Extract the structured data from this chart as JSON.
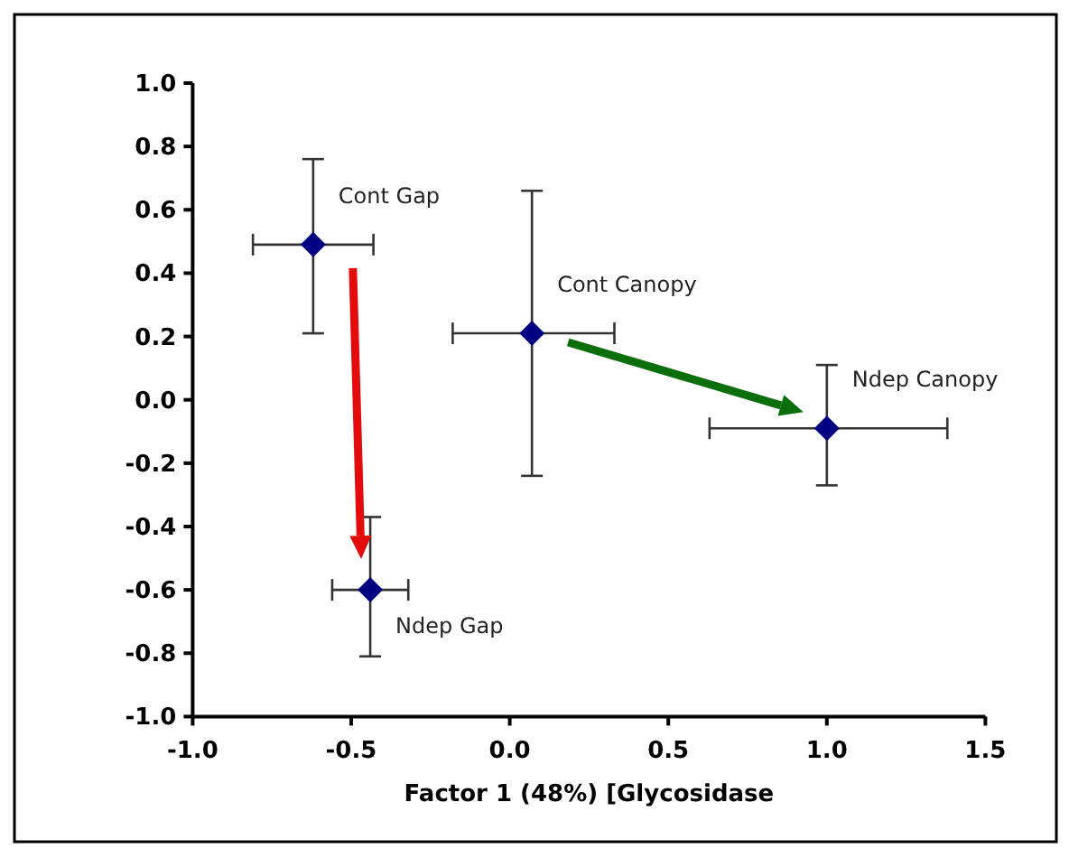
{
  "chart_data": {
    "type": "scatter",
    "xlabel": "Factor 1 (48%) [Glycosidase",
    "x": [
      -0.62,
      0.07,
      1.0,
      -0.44
    ],
    "series": [
      {
        "color": "#000080",
        "values": [
          0.49,
          0.21,
          -0.09,
          -0.6
        ],
        "errors": [
          [
            0.21,
            0.76
          ],
          [
            -0.24,
            0.66
          ],
          [
            -0.27,
            0.11
          ],
          [
            -0.81,
            -0.37
          ]
        ],
        "xerrors": [
          [
            -0.81,
            -0.43
          ],
          [
            -0.18,
            0.33
          ],
          [
            0.63,
            1.38
          ],
          [
            -0.56,
            -0.32
          ]
        ]
      }
    ],
    "marker": "diamond",
    "xlim": [
      -1.0,
      1.5
    ],
    "xticks": [
      {
        "value": -1.0,
        "label": "-1.0"
      },
      {
        "value": -0.5,
        "label": "-0.5"
      },
      {
        "value": 0,
        "label": "0.0"
      },
      {
        "value": 0.5,
        "label": "0.5"
      },
      {
        "value": 1.0,
        "label": "1.0"
      },
      {
        "value": 1.5,
        "label": "1.5"
      }
    ],
    "ylim": [
      -1.0,
      1.0
    ],
    "yticks": [
      {
        "value": -1.0,
        "label": "-1.0"
      },
      {
        "value": -0.8,
        "label": "-0.8"
      },
      {
        "value": -0.6,
        "label": "-0.6"
      },
      {
        "value": -0.4,
        "label": "-0.4"
      },
      {
        "value": -0.2,
        "label": "-0.2"
      },
      {
        "value": 0,
        "label": "0.0"
      },
      {
        "value": 0.2,
        "label": "0.2"
      },
      {
        "value": 0.4,
        "label": "0.4"
      },
      {
        "value": 0.6,
        "label": "0.6"
      },
      {
        "value": 0.8,
        "label": "0.8"
      },
      {
        "value": 1.0,
        "label": "1.0"
      }
    ],
    "annotations": [
      {
        "text": "Cont Gap",
        "x": -0.62,
        "y": 0.49
      },
      {
        "text": "Cont Canopy",
        "x": 0.07,
        "y": 0.21
      },
      {
        "text": "Ndep Canopy",
        "x": 1.0,
        "y": -0.09
      },
      {
        "text": "Ndep Gap",
        "x": -0.44,
        "y": -0.6
      }
    ]
  }
}
